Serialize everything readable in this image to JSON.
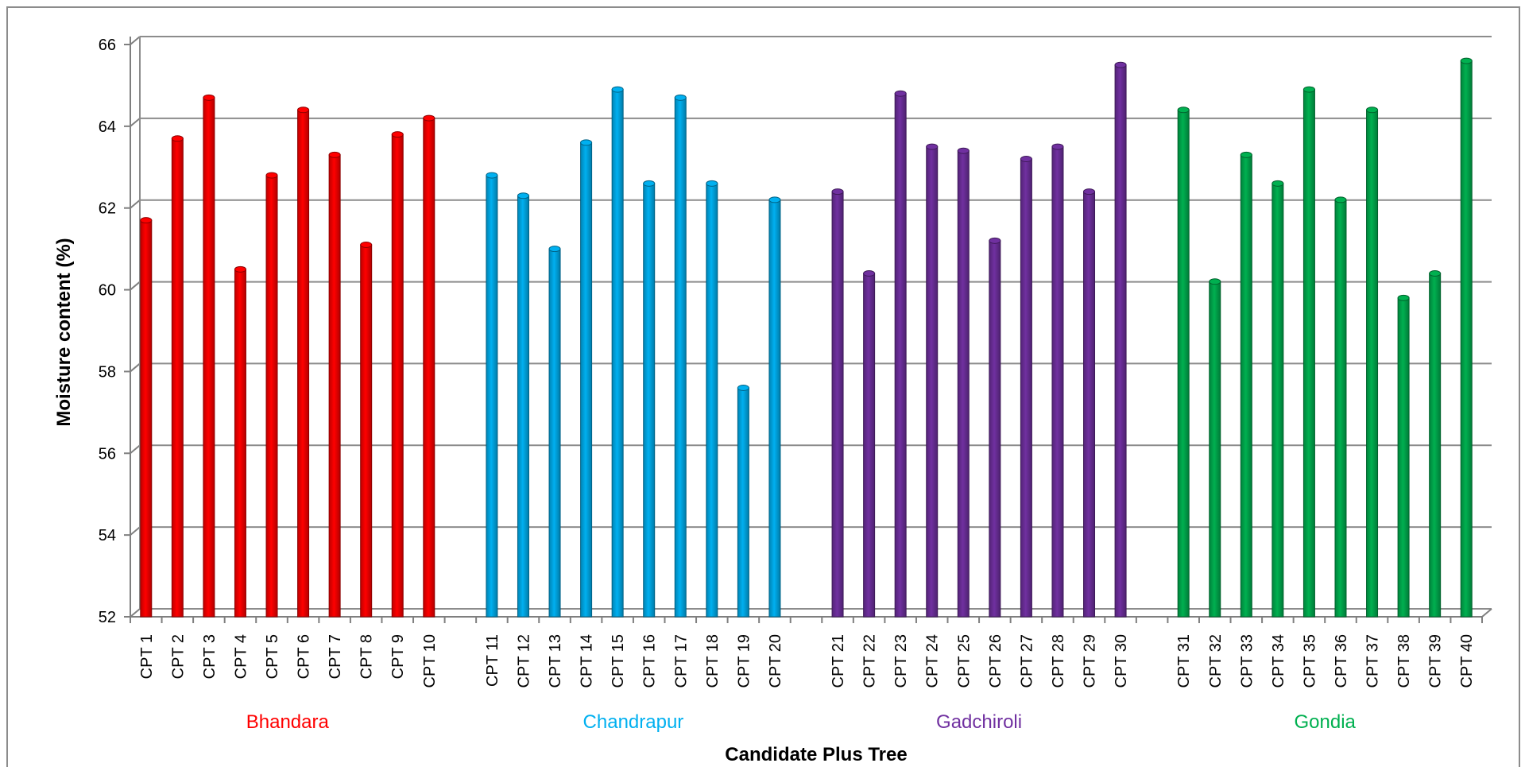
{
  "chart_data": {
    "type": "bar",
    "title": "",
    "xlabel": "Candidate Plus Tree",
    "ylabel": "Moisture content (%)",
    "ylim": [
      52,
      66
    ],
    "yticks": [
      52,
      54,
      56,
      58,
      60,
      62,
      64,
      66
    ],
    "grid": true,
    "legend": "none",
    "groups": [
      {
        "name": "Bhandara",
        "color": "#ff0000",
        "categories": [
          "CPT 1",
          "CPT 2",
          "CPT 3",
          "CPT 4",
          "CPT 5",
          "CPT 6",
          "CPT 7",
          "CPT 8",
          "CPT 9",
          "CPT 10"
        ],
        "values": [
          61.7,
          63.7,
          64.7,
          60.5,
          62.8,
          64.4,
          63.3,
          61.1,
          63.8,
          64.2
        ]
      },
      {
        "name": "Chandrapur",
        "color": "#00b0f0",
        "categories": [
          "CPT 11",
          "CPT 12",
          "CPT 13",
          "CPT 14",
          "CPT 15",
          "CPT 16",
          "CPT 17",
          "CPT 18",
          "CPT 19",
          "CPT 20"
        ],
        "values": [
          62.8,
          62.3,
          61.0,
          63.6,
          64.9,
          62.6,
          64.7,
          62.6,
          57.6,
          62.2
        ]
      },
      {
        "name": "Gadchiroli",
        "color": "#7030a0",
        "categories": [
          "CPT 21",
          "CPT 22",
          "CPT 23",
          "CPT 24",
          "CPT 25",
          "CPT 26",
          "CPT 27",
          "CPT 28",
          "CPT 29",
          "CPT 30"
        ],
        "values": [
          62.4,
          60.4,
          64.8,
          63.5,
          63.4,
          61.2,
          63.2,
          63.5,
          62.4,
          65.5
        ]
      },
      {
        "name": "Gondia",
        "color": "#00b050",
        "categories": [
          "CPT 31",
          "CPT 32",
          "CPT 33",
          "CPT 34",
          "CPT 35",
          "CPT 36",
          "CPT 37",
          "CPT 38",
          "CPT 39",
          "CPT 40"
        ],
        "values": [
          64.4,
          60.2,
          63.3,
          62.6,
          64.9,
          62.2,
          64.4,
          59.8,
          60.4,
          65.6
        ]
      }
    ]
  }
}
